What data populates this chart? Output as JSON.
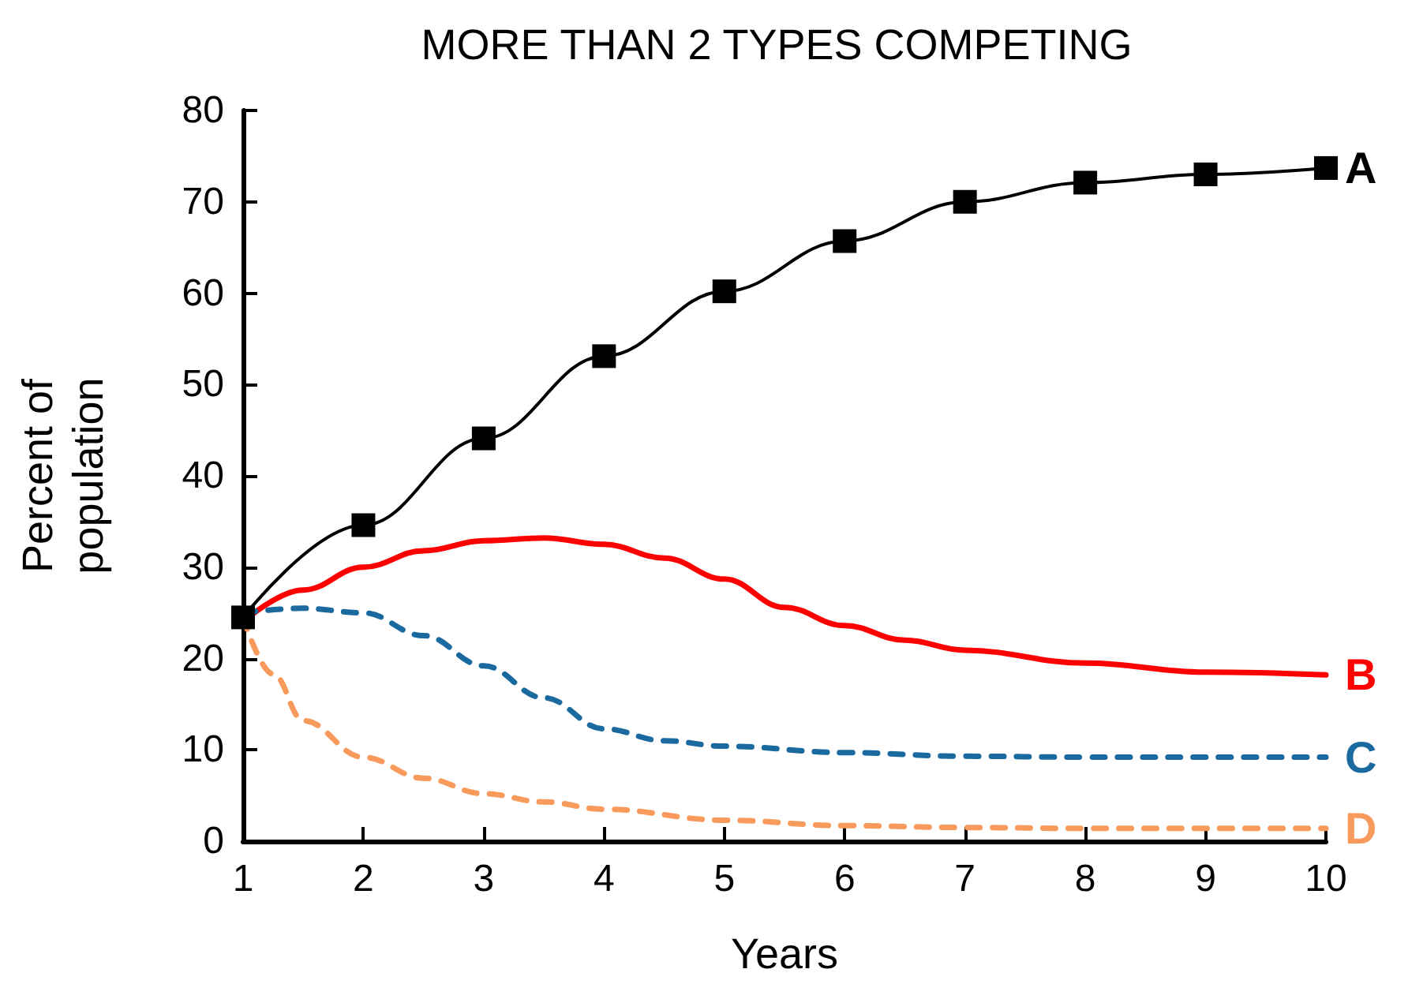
{
  "chart_data": {
    "type": "line",
    "title": "MORE THAN 2 TYPES COMPETING",
    "xlabel": "Years",
    "ylabel": "Percent of\npopulation",
    "xlim": [
      1,
      10
    ],
    "xticks": [
      1,
      2,
      3,
      4,
      5,
      6,
      7,
      8,
      9,
      10
    ],
    "ylim": [
      0,
      80
    ],
    "yticks": [
      0,
      10,
      20,
      30,
      40,
      50,
      60,
      70,
      80
    ],
    "grid": false,
    "legend": false,
    "series": [
      {
        "name": "A",
        "color": "#000000",
        "marker": "square",
        "line_style": "solid",
        "x": [
          1,
          2,
          3,
          4,
          5,
          6,
          7,
          8,
          9,
          10
        ],
        "values": [
          24.5,
          34.6,
          44.1,
          53.1,
          60.2,
          65.7,
          70,
          72.1,
          73,
          73.7
        ]
      },
      {
        "name": "B",
        "color": "#ff0000",
        "marker": "none",
        "line_style": "solid",
        "x": [
          1,
          1.5,
          2,
          2.5,
          3,
          3.5,
          4,
          4.5,
          5,
          5.5,
          6,
          6.5,
          7,
          8,
          9,
          10
        ],
        "values": [
          24,
          27.5,
          30,
          31.8,
          32.9,
          33.2,
          32.5,
          31,
          28.7,
          25.6,
          23.6,
          22,
          20.9,
          19.5,
          18.5,
          18.2
        ]
      },
      {
        "name": "C",
        "color": "#1a6aa0",
        "marker": "none",
        "line_style": "dashed",
        "x": [
          1,
          1.5,
          2,
          2.5,
          3,
          3.5,
          4,
          4.5,
          5,
          6,
          7,
          8,
          9,
          10
        ],
        "values": [
          25,
          25.5,
          25,
          22.5,
          19.2,
          15.7,
          12.3,
          11,
          10.4,
          9.7,
          9.3,
          9.2,
          9.2,
          9.2
        ]
      },
      {
        "name": "D",
        "color": "#f79a5b",
        "marker": "none",
        "line_style": "dashed",
        "x": [
          1,
          1.25,
          1.5,
          2,
          2.5,
          3,
          3.5,
          4,
          5,
          6,
          7,
          8,
          9,
          10
        ],
        "values": [
          24.5,
          18.3,
          13.2,
          9.2,
          6.9,
          5.2,
          4.3,
          3.5,
          2.3,
          1.7,
          1.5,
          1.4,
          1.4,
          1.4
        ]
      }
    ]
  }
}
